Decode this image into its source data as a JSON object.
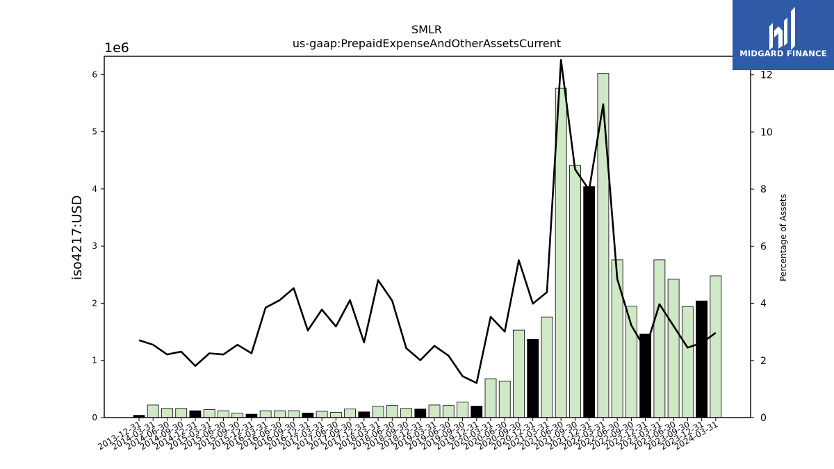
{
  "chart_data": {
    "type": "bar",
    "title": "SMLR",
    "subtitle": "us-gaap:PrepaidExpenseAndOtherAssetsCurrent",
    "ylabel": "iso4217:USD",
    "y2label": "Percentage of Assets",
    "y_multiplier_label": "1e6",
    "ylim": [
      0,
      6.32
    ],
    "y2lim": [
      0,
      12.65
    ],
    "yticks": [
      "0",
      "1",
      "2",
      "3",
      "4",
      "5",
      "6"
    ],
    "y2ticks": [
      "0",
      "2",
      "4",
      "6",
      "8",
      "10",
      "12"
    ],
    "grid": false,
    "categories": [
      "2013-12-31",
      "2014-03-31",
      "2014-06-30",
      "2014-09-30",
      "2014-12-31",
      "2015-03-31",
      "2015-06-30",
      "2015-09-30",
      "2015-12-31",
      "2016-03-31",
      "2016-06-30",
      "2016-09-30",
      "2016-12-31",
      "2017-03-31",
      "2017-06-30",
      "2017-09-30",
      "2017-12-31",
      "2018-03-31",
      "2018-06-30",
      "2018-09-30",
      "2018-12-31",
      "2019-03-31",
      "2019-06-30",
      "2019-09-30",
      "2019-12-31",
      "2020-03-31",
      "2020-06-30",
      "2020-09-30",
      "2020-12-31",
      "2021-03-31",
      "2021-06-30",
      "2021-09-30",
      "2021-12-31",
      "2022-03-31",
      "2022-06-30",
      "2022-09-30",
      "2022-12-31",
      "2023-03-31",
      "2023-06-30",
      "2023-09-30",
      "2023-12-31",
      "2024-03-31"
    ],
    "series": [
      {
        "values": [
          0.04,
          0.22,
          0.16,
          0.16,
          0.12,
          0.14,
          0.12,
          0.08,
          0.06,
          0.12,
          0.12,
          0.12,
          0.08,
          0.11,
          0.09,
          0.15,
          0.1,
          0.2,
          0.21,
          0.16,
          0.15,
          0.22,
          0.21,
          0.27,
          0.2,
          0.68,
          0.64,
          1.53,
          1.37,
          1.76,
          5.76,
          4.41,
          4.04,
          6.02,
          2.76,
          1.95,
          1.46,
          2.76,
          2.42,
          1.94,
          2.04,
          2.48
        ],
        "colors": [
          "#000000",
          "#cfe8c5",
          "#cfe8c5",
          "#cfe8c5",
          "#000000",
          "#cfe8c5",
          "#cfe8c5",
          "#cfe8c5",
          "#000000",
          "#cfe8c5",
          "#cfe8c5",
          "#cfe8c5",
          "#000000",
          "#cfe8c5",
          "#cfe8c5",
          "#cfe8c5",
          "#000000",
          "#cfe8c5",
          "#cfe8c5",
          "#cfe8c5",
          "#000000",
          "#cfe8c5",
          "#cfe8c5",
          "#cfe8c5",
          "#000000",
          "#cfe8c5",
          "#cfe8c5",
          "#cfe8c5",
          "#000000",
          "#cfe8c5",
          "#cfe8c5",
          "#cfe8c5",
          "#000000",
          "#cfe8c5",
          "#cfe8c5",
          "#cfe8c5",
          "#000000",
          "#cfe8c5",
          "#cfe8c5",
          "#cfe8c5",
          "#000000",
          "#cfe8c5"
        ]
      },
      {
        "type": "line",
        "axis": "right",
        "color": "#000000",
        "values": [
          2.71,
          2.55,
          2.21,
          2.31,
          1.81,
          2.25,
          2.21,
          2.55,
          2.25,
          3.85,
          4.11,
          4.53,
          3.05,
          3.78,
          3.19,
          4.11,
          2.63,
          4.81,
          4.09,
          2.43,
          2.01,
          2.51,
          2.17,
          1.45,
          1.21,
          3.53,
          3.01,
          5.51,
          3.99,
          4.39,
          12.52,
          8.69,
          7.97,
          10.97,
          4.85,
          3.23,
          2.39,
          3.97,
          3.21,
          2.45,
          2.61,
          2.97
        ]
      }
    ]
  },
  "logo": {
    "text": "MIDGARD FINANCE",
    "background": "#2f5aa8"
  }
}
